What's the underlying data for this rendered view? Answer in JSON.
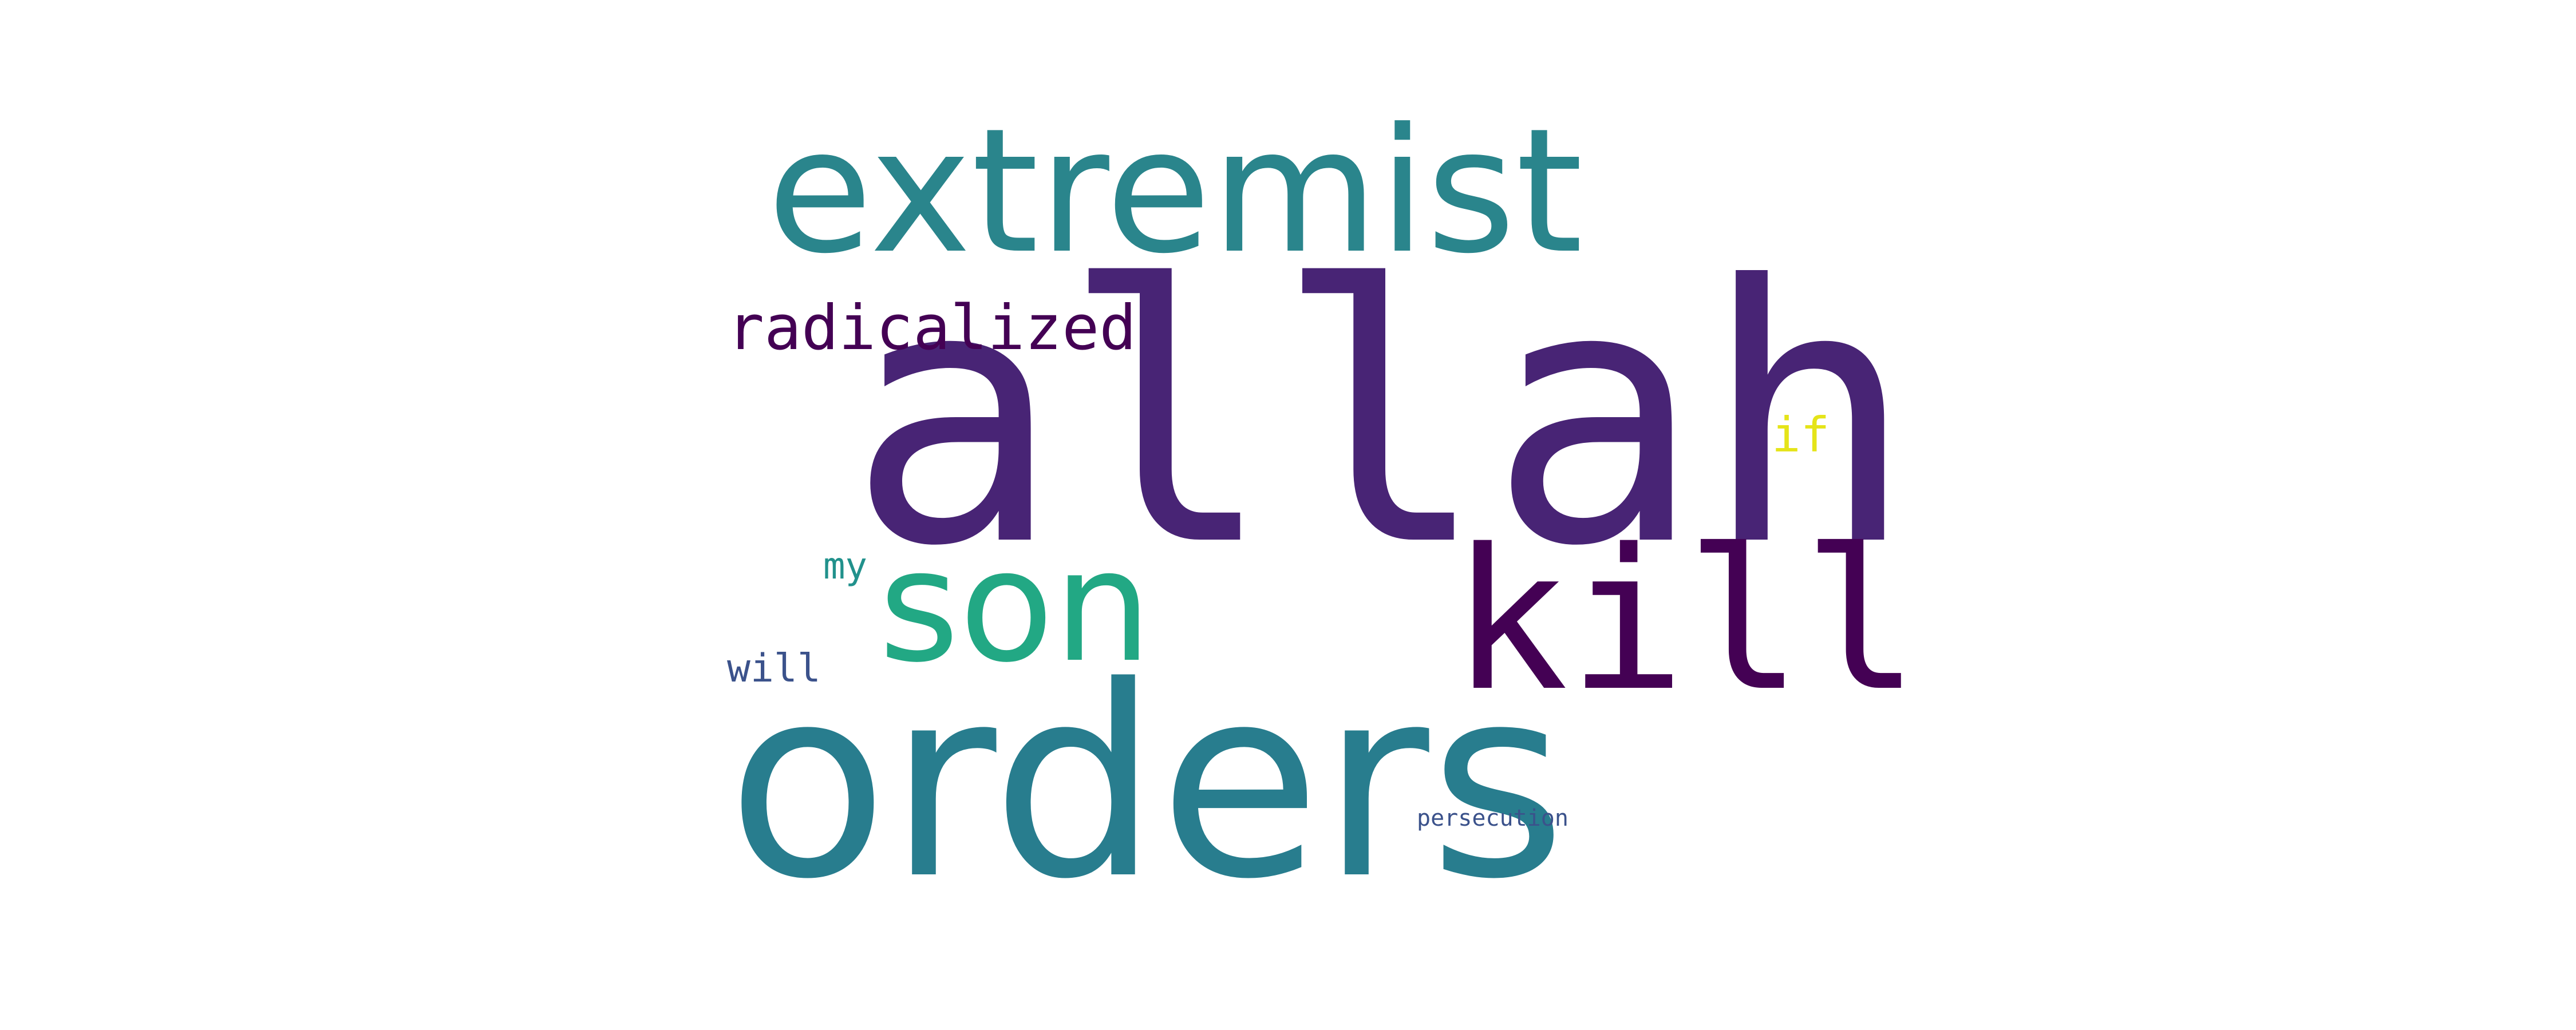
{
  "wordcloud": {
    "words": {
      "allah": {
        "text": "allah",
        "color": "#482475"
      },
      "orders": {
        "text": "orders",
        "color": "#287d8e"
      },
      "extremist": {
        "text": "extremist",
        "color": "#2a858c"
      },
      "kill": {
        "text": "kill",
        "color": "#440154"
      },
      "son": {
        "text": "son",
        "color": "#22a884"
      },
      "radicalized": {
        "text": "radicalized",
        "color": "#440154"
      },
      "if": {
        "text": "if",
        "color": "#e5e419"
      },
      "my": {
        "text": "my",
        "color": "#21918c"
      },
      "will": {
        "text": "will",
        "color": "#3b528b"
      },
      "persecution": {
        "text": "persecution",
        "color": "#3b528b"
      }
    }
  }
}
